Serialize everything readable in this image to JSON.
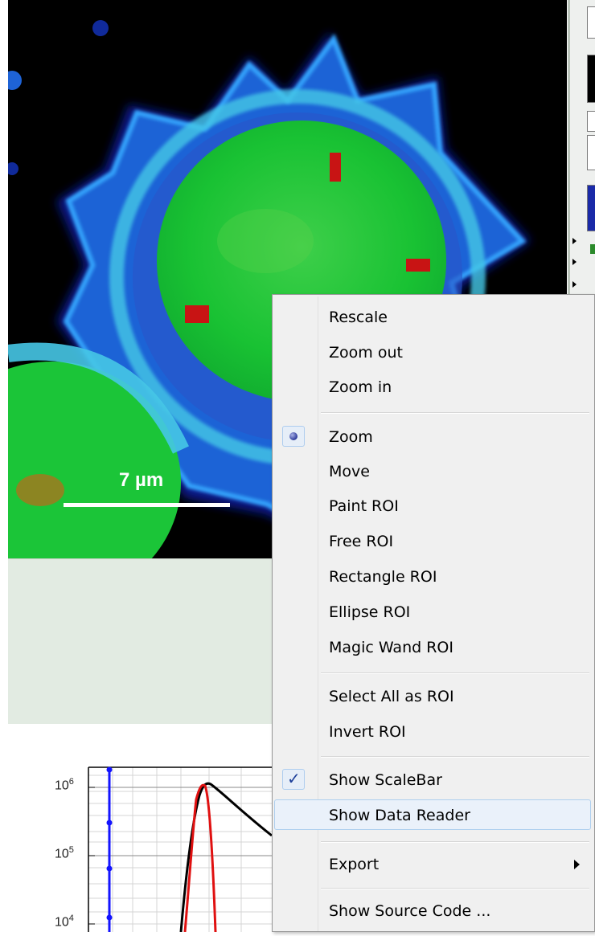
{
  "image": {
    "scalebar_label": "7 µm"
  },
  "plot": {
    "y_ticks": [
      {
        "base": "10",
        "exp": "6"
      },
      {
        "base": "10",
        "exp": "5"
      },
      {
        "base": "10",
        "exp": "4"
      }
    ]
  },
  "menu": {
    "rescale": "Rescale",
    "zoom_out": "Zoom out",
    "zoom_in": "Zoom in",
    "zoom": "Zoom",
    "move": "Move",
    "paint_roi": "Paint ROI",
    "free_roi": "Free ROI",
    "rectangle_roi": "Rectangle ROI",
    "ellipse_roi": "Ellipse ROI",
    "magic_wand_roi": "Magic Wand ROI",
    "select_all_as_roi": "Select All as ROI",
    "invert_roi": "Invert ROI",
    "show_scalebar": "Show ScaleBar",
    "show_data_reader": "Show Data Reader",
    "export": "Export",
    "show_source_code": "Show Source Code ..."
  },
  "icons": {
    "zoom_selected": "radio-dot-icon",
    "scalebar_checked": "checkmark-icon",
    "export_submenu": "submenu-arrow-icon"
  },
  "colors": {
    "menu_bg": "#f0f0f0",
    "menu_hover": "#eaf1fa",
    "cell_green": "#1fd13a",
    "cell_outline": "#2a7fd8",
    "plot_red": "#e01010",
    "plot_black": "#000000",
    "plot_blue": "#1414ff"
  }
}
